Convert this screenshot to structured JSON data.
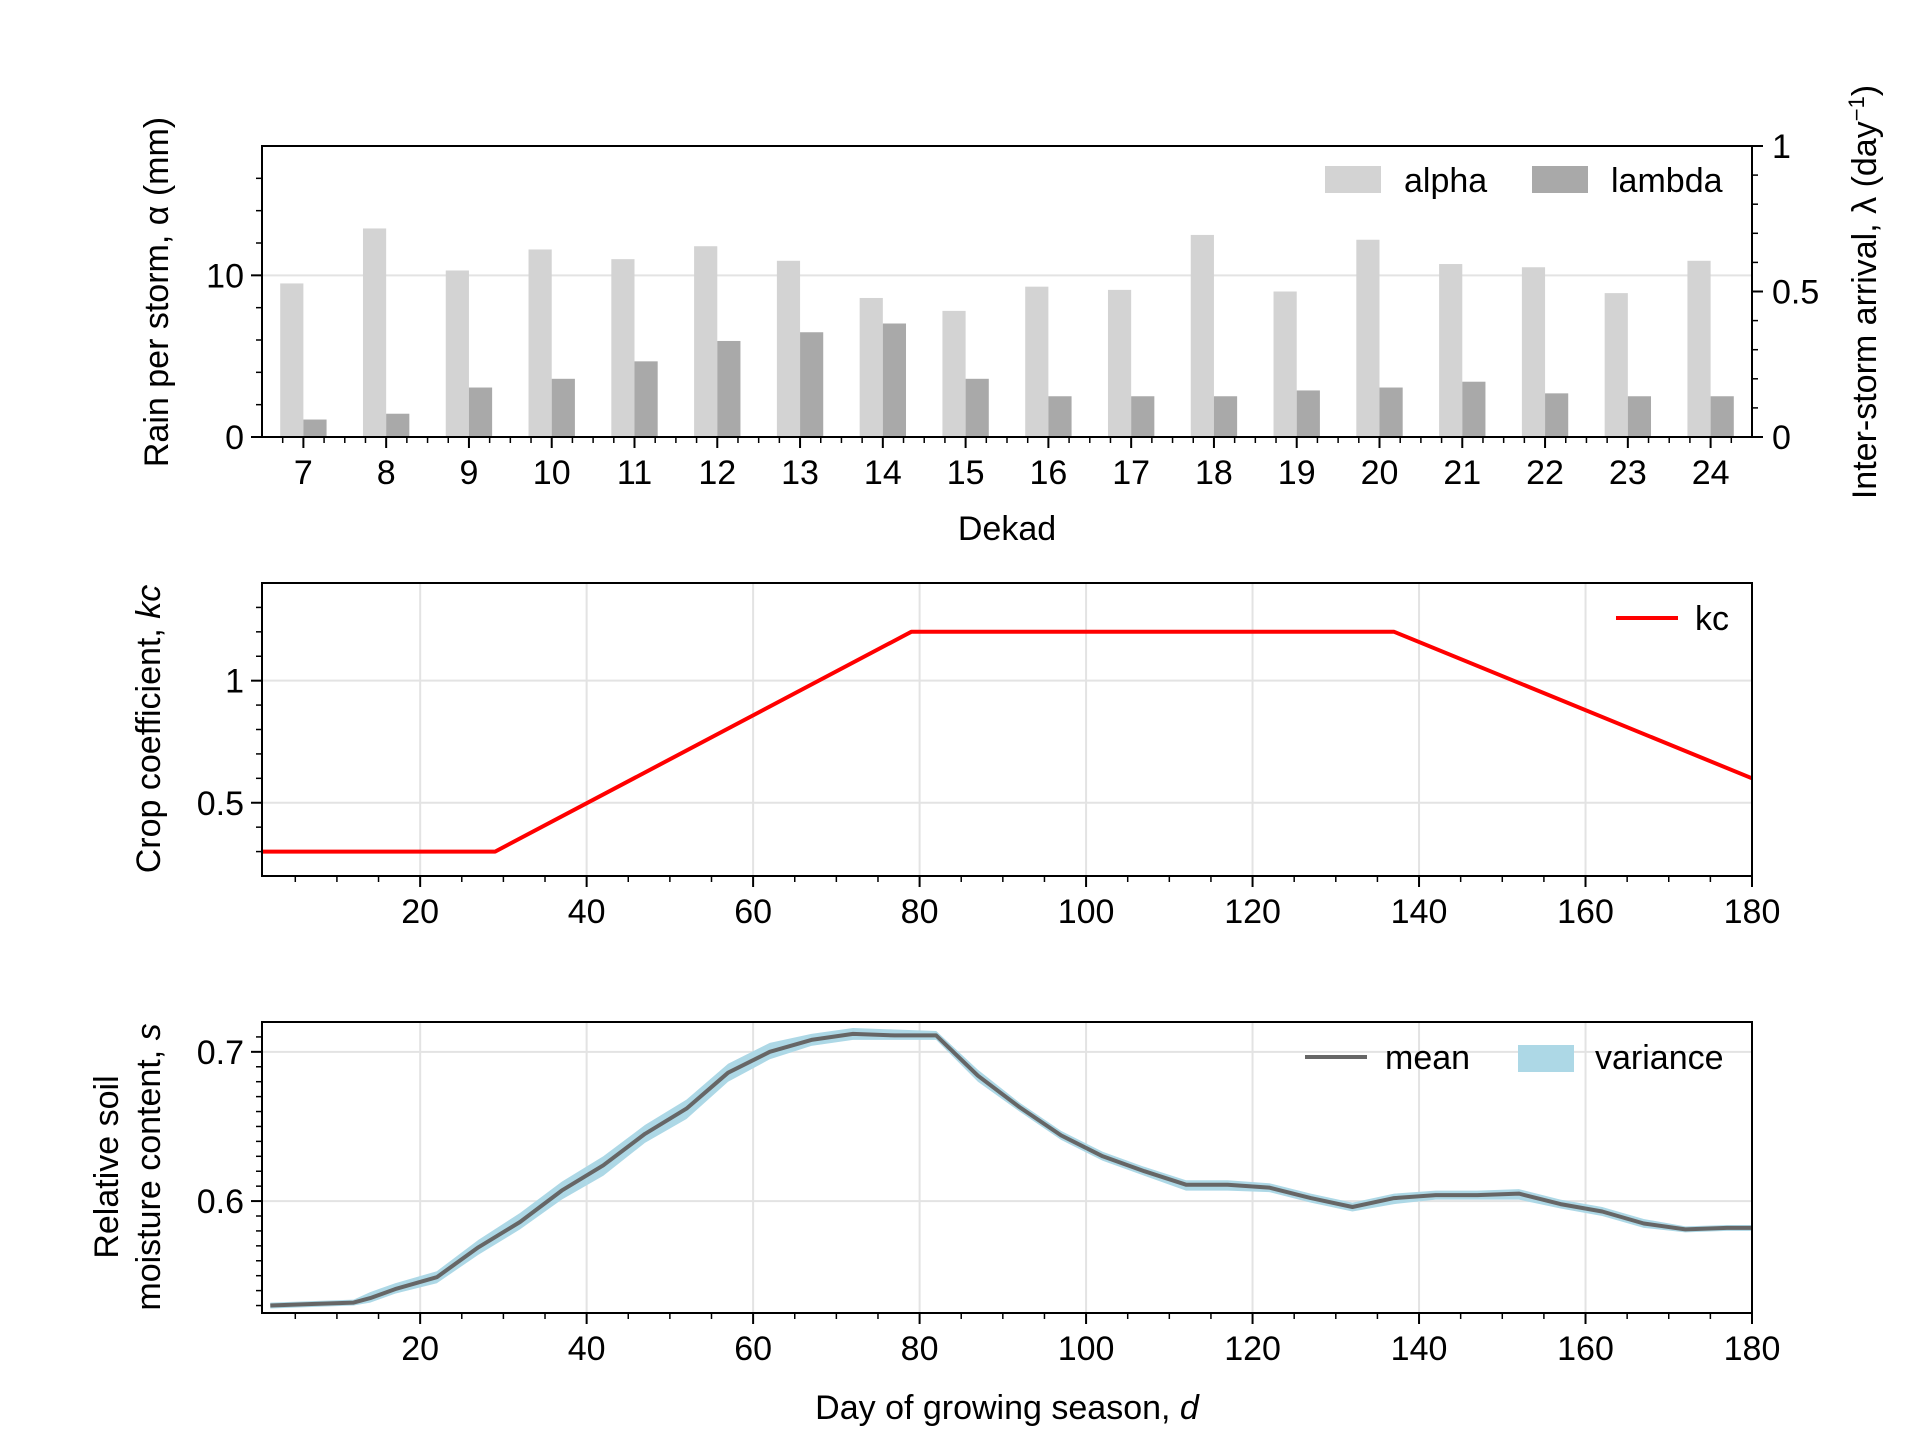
{
  "chart_data": [
    {
      "type": "bar",
      "xlabel": "Dekad",
      "ylabel": "Rain per storm, α (mm)",
      "ylabel2_main": "Inter-storm arrival, λ (day",
      "ylabel2_sup": "−1",
      "ylabel2_end": ")",
      "categories": [
        "7",
        "8",
        "9",
        "10",
        "11",
        "12",
        "13",
        "14",
        "15",
        "16",
        "17",
        "18",
        "19",
        "20",
        "21",
        "22",
        "23",
        "24"
      ],
      "ylim": [
        0,
        18
      ],
      "ylim2": [
        0,
        1
      ],
      "yticks": [
        "0",
        "10"
      ],
      "yticks2": [
        "0",
        "0.5",
        "1"
      ],
      "grid": true,
      "legend_position": "top-right",
      "series": [
        {
          "name": "alpha",
          "axis": "left",
          "color": "#d3d3d3",
          "values": [
            9.5,
            12.9,
            10.3,
            11.6,
            11.0,
            11.8,
            10.9,
            8.6,
            7.8,
            9.3,
            9.1,
            12.5,
            9.0,
            12.2,
            10.7,
            10.5,
            8.9,
            10.9
          ]
        },
        {
          "name": "lambda",
          "axis": "right",
          "color": "#a9a9a9",
          "values": [
            0.06,
            0.08,
            0.17,
            0.2,
            0.26,
            0.33,
            0.36,
            0.39,
            0.2,
            0.14,
            0.14,
            0.14,
            0.16,
            0.17,
            0.19,
            0.15,
            0.14,
            0.14
          ]
        }
      ]
    },
    {
      "type": "line",
      "xlabel": "",
      "ylabel": "Crop coefficient, ",
      "ylabel_italic": "kc",
      "xlim": [
        1,
        180
      ],
      "ylim": [
        0.2,
        1.4
      ],
      "xticks": [
        "20",
        "40",
        "60",
        "80",
        "100",
        "120",
        "140",
        "160",
        "180"
      ],
      "yticks": [
        "0.5",
        "1"
      ],
      "grid": true,
      "legend_position": "top-right",
      "series": [
        {
          "name": "kc",
          "color": "#ff0000",
          "x": [
            1,
            29,
            79,
            137,
            180
          ],
          "y": [
            0.3,
            0.3,
            1.2,
            1.2,
            0.6
          ]
        }
      ]
    },
    {
      "type": "line",
      "xlabel": "Day of growing season, ",
      "xlabel_italic": "d",
      "ylabel_line1": "Relative soil",
      "ylabel_line2": "moisture content, ",
      "ylabel_italic": "s",
      "xlim": [
        1,
        180
      ],
      "ylim": [
        0.525,
        0.72
      ],
      "xticks": [
        "20",
        "40",
        "60",
        "80",
        "100",
        "120",
        "140",
        "160",
        "180"
      ],
      "yticks": [
        "0.6",
        "0.7"
      ],
      "grid": true,
      "legend_position": "top-right",
      "series": [
        {
          "name": "mean",
          "color": "#666666",
          "x": [
            2,
            7,
            12,
            14,
            17,
            22,
            27,
            32,
            37,
            42,
            47,
            52,
            57,
            62,
            67,
            72,
            77,
            82,
            87,
            92,
            97,
            102,
            107,
            112,
            117,
            122,
            127,
            132,
            137,
            142,
            147,
            152,
            157,
            162,
            167,
            172,
            177,
            180
          ],
          "y": [
            0.53,
            0.531,
            0.532,
            0.535,
            0.541,
            0.549,
            0.569,
            0.586,
            0.607,
            0.624,
            0.645,
            0.662,
            0.686,
            0.7,
            0.708,
            0.712,
            0.711,
            0.711,
            0.684,
            0.663,
            0.644,
            0.63,
            0.62,
            0.611,
            0.611,
            0.609,
            0.602,
            0.596,
            0.602,
            0.604,
            0.604,
            0.605,
            0.598,
            0.593,
            0.585,
            0.581,
            0.582,
            0.582
          ]
        },
        {
          "name": "variance",
          "color": "#add8e6",
          "lower": [
            0.528,
            0.529,
            0.53,
            0.532,
            0.538,
            0.545,
            0.564,
            0.581,
            0.601,
            0.617,
            0.639,
            0.655,
            0.68,
            0.695,
            0.704,
            0.708,
            0.708,
            0.708,
            0.68,
            0.66,
            0.641,
            0.627,
            0.617,
            0.607,
            0.607,
            0.606,
            0.599,
            0.593,
            0.598,
            0.601,
            0.601,
            0.601,
            0.595,
            0.59,
            0.582,
            0.579,
            0.58,
            0.58
          ],
          "upper": [
            0.532,
            0.533,
            0.534,
            0.539,
            0.545,
            0.553,
            0.574,
            0.592,
            0.613,
            0.63,
            0.651,
            0.668,
            0.692,
            0.706,
            0.712,
            0.716,
            0.715,
            0.714,
            0.688,
            0.666,
            0.647,
            0.633,
            0.623,
            0.614,
            0.614,
            0.612,
            0.605,
            0.599,
            0.605,
            0.607,
            0.607,
            0.608,
            0.601,
            0.596,
            0.588,
            0.583,
            0.584,
            0.584
          ]
        }
      ]
    }
  ]
}
